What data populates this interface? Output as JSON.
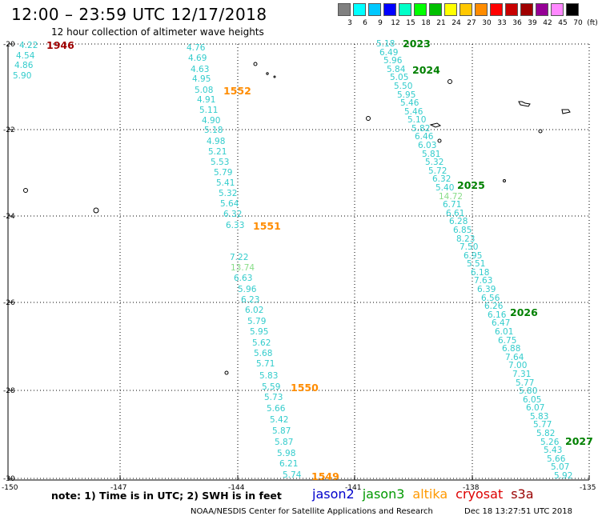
{
  "header": {
    "title": "12:00 – 23:59 UTC 12/17/2018",
    "subtitle": "12 hour collection of altimeter wave heights"
  },
  "color_scale": {
    "unit": "(ft)",
    "colors": [
      "#808080",
      "#00ffff",
      "#00c8ff",
      "#0000ff",
      "#00ffc8",
      "#00ff00",
      "#00c000",
      "#ffff00",
      "#ffc800",
      "#ff8c00",
      "#ff0000",
      "#c80000",
      "#a00000",
      "#960096",
      "#ff88ff",
      "#000000"
    ],
    "labels": [
      "3",
      "6",
      "9",
      "12",
      "15",
      "18",
      "21",
      "24",
      "27",
      "30",
      "33",
      "36",
      "39",
      "42",
      "45",
      "70"
    ]
  },
  "axes": {
    "lon_ticks": [
      "-150",
      "-147",
      "-144",
      "-141",
      "-138",
      "-135"
    ],
    "lat_ticks": [
      "-20",
      "-22",
      "-24",
      "-26",
      "-28",
      "-30"
    ]
  },
  "passes": [
    {
      "id": "1946",
      "satellite": "cryosat",
      "color": "#a00000"
    },
    {
      "id": "1552",
      "satellite": "altika",
      "color": "#ff8c00"
    },
    {
      "id": "1551",
      "satellite": "altika",
      "color": "#ff8c00"
    },
    {
      "id": "1550",
      "satellite": "altika",
      "color": "#ff8c00"
    },
    {
      "id": "1549",
      "satellite": "altika",
      "color": "#ff8c00"
    },
    {
      "id": "2023",
      "satellite": "jason3",
      "color": "#008000"
    },
    {
      "id": "2024",
      "satellite": "jason3",
      "color": "#008000"
    },
    {
      "id": "2025",
      "satellite": "jason3",
      "color": "#008000"
    },
    {
      "id": "2026",
      "satellite": "jason3",
      "color": "#008000"
    },
    {
      "id": "2027",
      "satellite": "jason3",
      "color": "#008000"
    }
  ],
  "tracks": {
    "cryosat_1946": [
      "4.22",
      "4.54",
      "4.86",
      "5.90"
    ],
    "altika": [
      "4.76",
      "4.69",
      "4.63",
      "4.95",
      "5.08",
      "4.91",
      "5.11",
      "4.90",
      "5.18",
      "4.98",
      "5.21",
      "5.53",
      "5.79",
      "5.41",
      "5.32",
      "5.64",
      "6.32",
      "6.33",
      "7.22",
      "13.74",
      "6.63",
      "5.96",
      "6.23",
      "6.02",
      "5.79",
      "5.95",
      "5.62",
      "5.68",
      "5.71",
      "5.83",
      "5.59",
      "5.73",
      "5.66",
      "5.42",
      "5.87",
      "5.87",
      "5.98",
      "6.21",
      "5.74"
    ],
    "jason3": [
      "5.18",
      "6.49",
      "5.96",
      "5.84",
      "5.05",
      "5.50",
      "5.95",
      "5.46",
      "5.46",
      "5.10",
      "5.82",
      "6.46",
      "6.03",
      "5.81",
      "5.32",
      "5.72",
      "6.32",
      "5.40",
      "14.72",
      "6.71",
      "6.61",
      "6.28",
      "6.85",
      "8.23",
      "7.50",
      "6.95",
      "5.51",
      "6.18",
      "7.63",
      "6.39",
      "6.56",
      "6.26",
      "6.16",
      "6.47",
      "6.01",
      "6.75",
      "6.88",
      "7.64",
      "7.00",
      "7.31",
      "5.77",
      "5.80",
      "6.05",
      "6.07",
      "5.83",
      "5.77",
      "5.82",
      "5.26",
      "5.43",
      "5.66",
      "5.07",
      "5.92"
    ]
  },
  "footer": {
    "note": "note: 1) Time is in UTC; 2) SWH is in feet",
    "legend": [
      {
        "name": "jason2",
        "color": "#0000cc"
      },
      {
        "name": "jason3",
        "color": "#009900"
      },
      {
        "name": "altika",
        "color": "#ff9900"
      },
      {
        "name": "cryosat",
        "color": "#dd0000"
      },
      {
        "name": "s3a",
        "color": "#990000"
      }
    ],
    "credit": "NOAA/NESDIS Center for Satellite Applications and Research",
    "timestamp": "Dec 18 13:27:51 UTC 2018"
  }
}
